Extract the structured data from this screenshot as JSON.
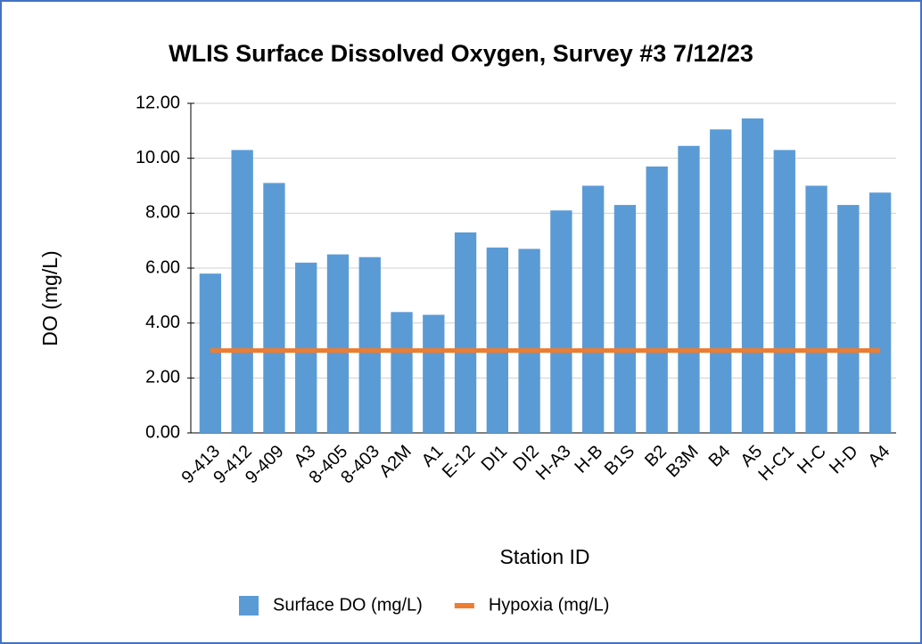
{
  "chart_data": {
    "type": "bar",
    "title": "WLIS Surface Dissolved Oxygen, Survey #3 7/12/23",
    "x_label": "Station ID",
    "y_label": "DO (mg/L)",
    "categories": [
      "9-413",
      "9-412",
      "9-409",
      "A3",
      "8-405",
      "8-403",
      "A2M",
      "A1",
      "E-12",
      "DI1",
      "DI2",
      "H-A3",
      "H-B",
      "B1S",
      "B2",
      "B3M",
      "B4",
      "A5",
      "H-C1",
      "H-C",
      "H-D",
      "A4"
    ],
    "series": [
      {
        "name": "Surface DO (mg/L)",
        "type": "bar",
        "color": "#5b9bd5",
        "values": [
          5.8,
          10.3,
          9.1,
          6.2,
          6.5,
          6.4,
          4.4,
          4.3,
          7.3,
          6.75,
          6.7,
          8.1,
          9.0,
          8.3,
          9.7,
          10.45,
          11.05,
          11.45,
          10.3,
          9.0,
          8.3,
          8.75
        ]
      },
      {
        "name": "Hypoxia (mg/L)",
        "type": "line",
        "color": "#ed7d31",
        "values": [
          3,
          3,
          3,
          3,
          3,
          3,
          3,
          3,
          3,
          3,
          3,
          3,
          3,
          3,
          3,
          3,
          3,
          3,
          3,
          3,
          3,
          3
        ]
      }
    ],
    "ylim": [
      0,
      12
    ],
    "yticks": [
      {
        "value": 0,
        "label": "0.00"
      },
      {
        "value": 2,
        "label": "2.00"
      },
      {
        "value": 4,
        "label": "4.00"
      },
      {
        "value": 6,
        "label": "6.00"
      },
      {
        "value": 8,
        "label": "8.00"
      },
      {
        "value": 10,
        "label": "10.00"
      },
      {
        "value": 12,
        "label": "12.00"
      }
    ],
    "grid": true,
    "legend": "bottom"
  }
}
